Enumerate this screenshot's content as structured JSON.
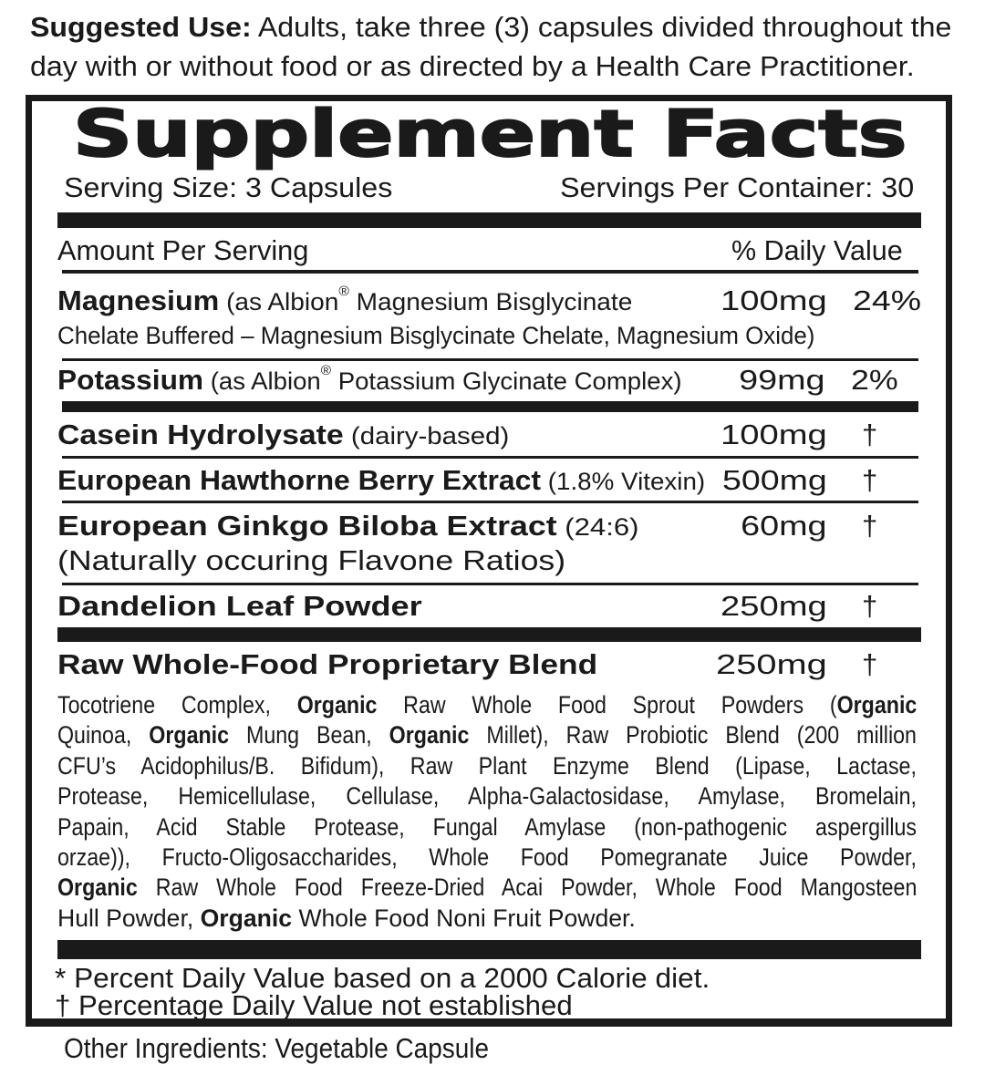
{
  "suggested_use": {
    "label": "Suggested Use:",
    "line1": " Adults, take three (3) capsules divided throughout the",
    "line2": "day with or without food or as directed by a Health Care Practitioner."
  },
  "facts": {
    "title": "Supplement Facts",
    "serving_size": "Serving Size: 3 Capsules",
    "servings_per_container": "Servings Per Container: 30",
    "amount_per_serving": "Amount Per Serving",
    "daily_value_header": "% Daily Value",
    "rows": [
      {
        "name": "Magnesium",
        "desc": " (as Albion",
        "reg": "®",
        "desc2": " Magnesium Bisglycinate",
        "desc_line2": "Chelate Buffered – Magnesium Bisglycinate Chelate, Magnesium Oxide)",
        "amount": "100mg",
        "dv": "24%"
      },
      {
        "name": "Potassium",
        "desc": " (as Albion",
        "reg": "®",
        "desc2": " Potassium Glycinate Complex)",
        "amount": "99mg",
        "dv": "2%"
      },
      {
        "name": "Casein Hydrolysate",
        "desc": " (dairy-based)",
        "amount": "100mg",
        "dv": "†"
      },
      {
        "name": "European Hawthorne Berry Extract",
        "desc": " (1.8% Vitexin)",
        "amount": "500mg",
        "dv": "†"
      },
      {
        "name": "European Ginkgo Biloba Extract",
        "desc": " (24:6)",
        "desc_line2": "(Naturally occuring Flavone Ratios)",
        "amount": "60mg",
        "dv": "†"
      },
      {
        "name": "Dandelion Leaf Powder",
        "amount": "250mg",
        "dv": "†"
      },
      {
        "name": "Raw Whole-Food Proprietary Blend",
        "amount": "250mg",
        "dv": "†"
      }
    ],
    "blend_lines": [
      [
        {
          "t": "Tocotriene Complex, "
        },
        {
          "t": "Organic",
          "b": true
        },
        {
          "t": " Raw Whole Food Sprout Powders ("
        },
        {
          "t": "Organic",
          "b": true
        }
      ],
      [
        {
          "t": "Quinoa, "
        },
        {
          "t": "Organic",
          "b": true
        },
        {
          "t": " Mung Bean, "
        },
        {
          "t": "Organic",
          "b": true
        },
        {
          "t": " Millet), Raw Probiotic Blend (200 million"
        }
      ],
      [
        {
          "t": "CFU’s Acidophilus/B. Bifidum), Raw Plant Enzyme Blend (Lipase, Lactase,"
        }
      ],
      [
        {
          "t": "Protease, Hemicellulase, Cellulase, Alpha-Galactosidase, Amylase, Bromelain,"
        }
      ],
      [
        {
          "t": "Papain, Acid Stable Protease, Fungal Amylase (non-pathogenic aspergillus"
        }
      ],
      [
        {
          "t": "orzae)), Fructo-Oligosaccharides, Whole Food Pomegranate Juice Powder,"
        }
      ],
      [
        {
          "t": "Organic",
          "b": true
        },
        {
          "t": " Raw Whole Food Freeze-Dried Acai Powder, Whole Food Mangosteen"
        }
      ],
      [
        {
          "t": "Hull Powder, "
        },
        {
          "t": "Organic",
          "b": true
        },
        {
          "t": " Whole Food Noni Fruit Powder."
        }
      ]
    ],
    "footnote_percent": "* Percent Daily Value  based on a 2000 Calorie diet.",
    "footnote_dagger": "† Percentage Daily Value not established"
  },
  "other_ingredients": "Other Ingredients: Vegetable Capsule",
  "colors": {
    "ink": "#1a1a1a",
    "background": "#ffffff"
  }
}
